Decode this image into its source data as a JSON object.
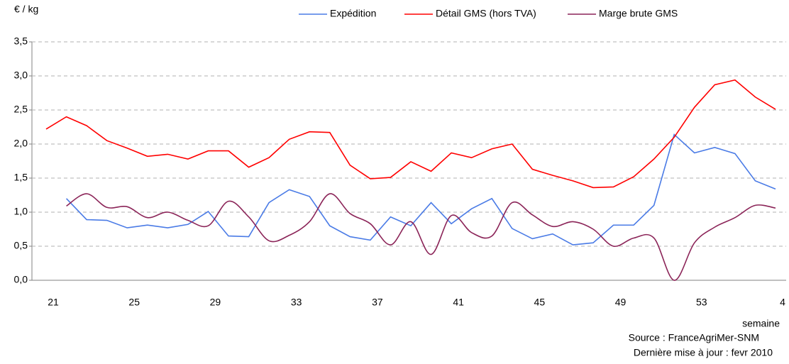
{
  "chart_data": {
    "type": "line",
    "y_label": "€ / kg",
    "x_label": "semaine",
    "notes": [
      "Source : FranceAgriMer-SNM",
      "Dernière mise à jour : fevr 2010"
    ],
    "categories": [
      "21",
      null,
      null,
      null,
      "25",
      null,
      null,
      null,
      "29",
      null,
      null,
      null,
      "33",
      null,
      null,
      null,
      "37",
      null,
      null,
      null,
      "41",
      null,
      null,
      null,
      "45",
      null,
      null,
      null,
      "49",
      null,
      null,
      null,
      "53",
      null,
      null,
      null,
      "4"
    ],
    "ylim": [
      0,
      3.5
    ],
    "yticks": [
      {
        "value": 0,
        "label": "0,0"
      },
      {
        "value": 0.5,
        "label": "0,5"
      },
      {
        "value": 1,
        "label": "1,0"
      },
      {
        "value": 1.5,
        "label": "1,5"
      },
      {
        "value": 2,
        "label": "2,0"
      },
      {
        "value": 2.5,
        "label": "2,5"
      },
      {
        "value": 3,
        "label": "3,0"
      },
      {
        "value": 3.5,
        "label": "3,5"
      }
    ],
    "grid": true,
    "legend": "top",
    "series": [
      {
        "name": "Expédition",
        "color": "#4a7be6",
        "smooth": false,
        "values": [
          null,
          1.2,
          0.89,
          0.88,
          0.77,
          0.81,
          0.77,
          0.82,
          1.01,
          0.65,
          0.64,
          1.14,
          1.33,
          1.23,
          0.8,
          0.64,
          0.59,
          0.93,
          0.8,
          1.14,
          0.83,
          1.05,
          1.2,
          0.76,
          0.61,
          0.68,
          0.52,
          0.55,
          0.81,
          0.81,
          1.1,
          2.14,
          1.87,
          1.95,
          1.86,
          1.46,
          1.34
        ]
      },
      {
        "name": "Détail GMS (hors TVA)",
        "color": "#ff0000",
        "smooth": false,
        "values": [
          2.22,
          2.4,
          2.27,
          2.05,
          1.94,
          1.82,
          1.85,
          1.78,
          1.9,
          1.9,
          1.66,
          1.8,
          2.07,
          2.18,
          2.17,
          1.69,
          1.49,
          1.51,
          1.74,
          1.6,
          1.87,
          1.8,
          1.93,
          2.0,
          1.63,
          1.54,
          1.46,
          1.36,
          1.37,
          1.52,
          1.78,
          2.1,
          2.54,
          2.87,
          2.94,
          2.69,
          2.51
        ]
      },
      {
        "name": "Marge brute GMS",
        "color": "#8b2458",
        "smooth": true,
        "values": [
          null,
          1.09,
          1.27,
          1.07,
          1.08,
          0.92,
          1.0,
          0.88,
          0.8,
          1.16,
          0.93,
          0.58,
          0.66,
          0.86,
          1.27,
          0.98,
          0.83,
          0.52,
          0.86,
          0.38,
          0.95,
          0.7,
          0.65,
          1.14,
          0.96,
          0.79,
          0.86,
          0.75,
          0.5,
          0.62,
          0.62,
          0.0,
          0.55,
          0.78,
          0.92,
          1.1,
          1.06
        ]
      }
    ]
  }
}
